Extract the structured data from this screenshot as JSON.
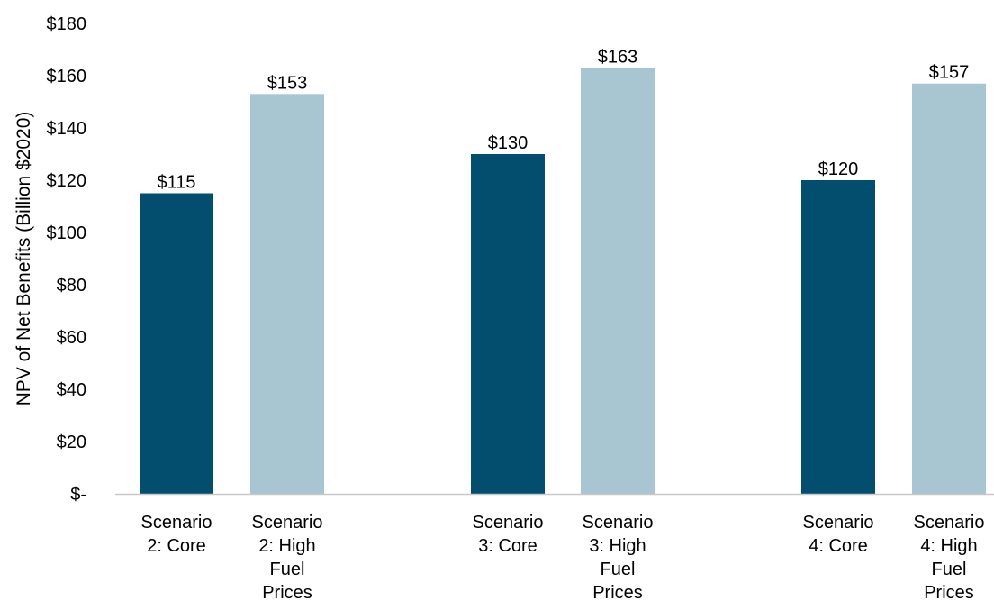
{
  "chart_data": {
    "type": "bar",
    "title": "",
    "xlabel": "",
    "ylabel": "NPV of Net Benefits (Billion $2020)",
    "ylim": [
      0,
      180
    ],
    "y_ticks": [
      {
        "value": 0,
        "label": "$-"
      },
      {
        "value": 20,
        "label": "$20"
      },
      {
        "value": 40,
        "label": "$40"
      },
      {
        "value": 60,
        "label": "$60"
      },
      {
        "value": 80,
        "label": "$80"
      },
      {
        "value": 100,
        "label": "$100"
      },
      {
        "value": 120,
        "label": "$120"
      },
      {
        "value": 140,
        "label": "$140"
      },
      {
        "value": 160,
        "label": "$160"
      },
      {
        "value": 180,
        "label": "$180"
      }
    ],
    "grid": false,
    "legend": "none",
    "colors": {
      "core": "#034e6e",
      "high_fuel": "#a7c6d1",
      "axis": "#c8c8c8"
    },
    "bars": [
      {
        "category": "Scenario 2: Core",
        "label_lines": [
          "Scenario",
          "2: Core"
        ],
        "value": 115,
        "data_label": "$115",
        "color_key": "core"
      },
      {
        "category": "Scenario 2: High Fuel Prices",
        "label_lines": [
          "Scenario",
          "2: High",
          "Fuel",
          "Prices"
        ],
        "value": 153,
        "data_label": "$153",
        "color_key": "high_fuel"
      },
      {
        "category": "Scenario 3: Core",
        "label_lines": [
          "Scenario",
          "3: Core"
        ],
        "value": 130,
        "data_label": "$130",
        "color_key": "core"
      },
      {
        "category": "Scenario 3: High Fuel Prices",
        "label_lines": [
          "Scenario",
          "3: High",
          "Fuel",
          "Prices"
        ],
        "value": 163,
        "data_label": "$163",
        "color_key": "high_fuel"
      },
      {
        "category": "Scenario 4: Core",
        "label_lines": [
          "Scenario",
          "4: Core"
        ],
        "value": 120,
        "data_label": "$120",
        "color_key": "core"
      },
      {
        "category": "Scenario 4: High Fuel Prices",
        "label_lines": [
          "Scenario",
          "4: High",
          "Fuel",
          "Prices"
        ],
        "value": 157,
        "data_label": "$157",
        "color_key": "high_fuel"
      }
    ]
  }
}
